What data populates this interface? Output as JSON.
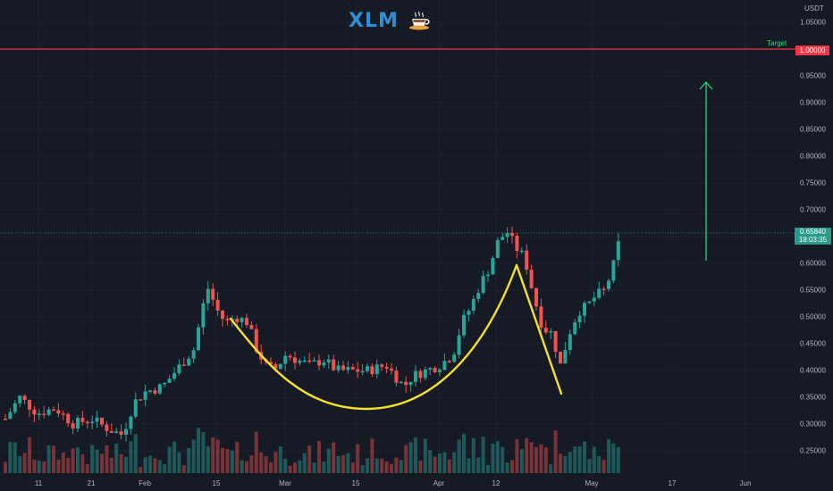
{
  "title": {
    "symbol": "XLM",
    "icon": "coffee-cup-icon"
  },
  "price_axis": {
    "unit": "USDT",
    "ticks": [
      "1.05000",
      "1.00000",
      "0.95000",
      "0.90000",
      "0.85000",
      "0.80000",
      "0.75000",
      "0.70000",
      "0.65840",
      "0.60000",
      "0.55000",
      "0.50000",
      "0.45000",
      "0.40000",
      "0.35000",
      "0.30000",
      "0.25000"
    ]
  },
  "time_axis": {
    "ticks": [
      "11",
      "21",
      "Feb",
      "15",
      "Mar",
      "15",
      "Apr",
      "12",
      "May",
      "17",
      "Jun"
    ]
  },
  "target": {
    "label": "Target",
    "price": "1.00000",
    "color": "#f23645"
  },
  "current_price": {
    "price": "0.65840",
    "countdown": "18:03:35",
    "color": "#2a9a8a"
  },
  "colors": {
    "up": "#26a69a",
    "down": "#ef5350",
    "pattern": "#f5e12a",
    "arrow": "#26e07a",
    "background": "#161a25"
  },
  "chart_data": {
    "type": "candlestick",
    "ylim": [
      0.22,
      1.07
    ],
    "pattern": "cup and handle",
    "x": [
      "Jan 05",
      "Jan 11",
      "Jan 21",
      "Feb 01",
      "Feb 15",
      "Mar 01",
      "Mar 15",
      "Apr 01",
      "Apr 12",
      "May 01",
      "May 05"
    ],
    "close": [
      0.33,
      0.3,
      0.29,
      0.33,
      0.53,
      0.41,
      0.4,
      0.42,
      0.66,
      0.42,
      0.658
    ],
    "target_price": 1.0,
    "last_price": 0.6584
  }
}
